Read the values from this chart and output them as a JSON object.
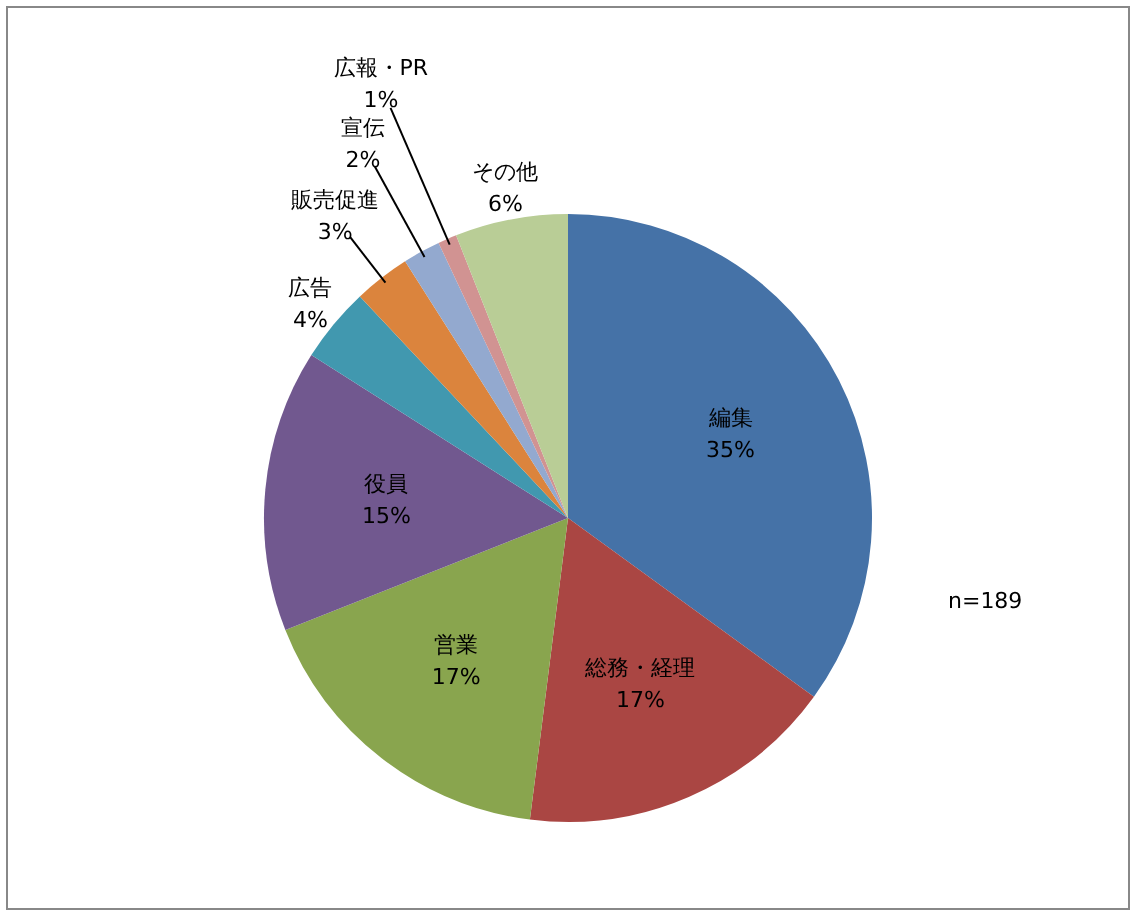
{
  "chart_data": {
    "type": "pie",
    "categories": [
      "編集",
      "総務・経理",
      "営業",
      "役員",
      "広告",
      "販売促進",
      "宣伝",
      "広報・PR",
      "その他"
    ],
    "values": [
      35,
      17,
      17,
      15,
      4,
      3,
      2,
      1,
      6
    ],
    "value_labels": [
      "35%",
      "17%",
      "17%",
      "15%",
      "4%",
      "3%",
      "2%",
      "1%",
      "6%"
    ],
    "colors": [
      "#4572a7",
      "#aa4643",
      "#89a54e",
      "#71588f",
      "#4198af",
      "#db843d",
      "#93a9cf",
      "#d19392",
      "#b9cd96"
    ],
    "annotations": [
      "n=189"
    ],
    "legend": false
  }
}
